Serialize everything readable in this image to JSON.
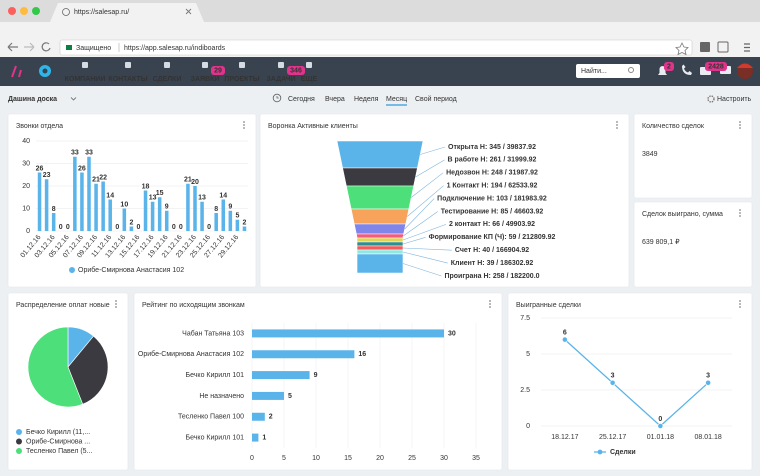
{
  "browser": {
    "tab_title": "https://salesap.ru/",
    "secure_label": "Защищено",
    "url": "https://app.salesap.ru/indiboards"
  },
  "nav": {
    "items": [
      {
        "label": "КОМПАНИИ"
      },
      {
        "label": "КОНТАКТЫ"
      },
      {
        "label": "СДЕЛКИ"
      },
      {
        "label": "ЗАЯВКИ",
        "badge": 29
      },
      {
        "label": "ПРОЕКТЫ"
      },
      {
        "label": "ЗАДАЧИ",
        "badge": 346
      },
      {
        "label": "ЕЩЕ"
      }
    ],
    "search_placeholder": "Найти...",
    "notification_badges": [
      2,
      2428
    ]
  },
  "toolbar": {
    "board_name": "Дашина доска",
    "periods": [
      "Сегодня",
      "Вчера",
      "Неделя",
      "Месяц",
      "Свой период"
    ],
    "settings_label": "Настроить"
  },
  "widgets": {
    "calls": {
      "title": "Звонки отдела",
      "chart": {
        "type": "bar",
        "categories": [
          "01.12.16",
          null,
          "03.12.16",
          null,
          "05.12.16",
          null,
          "07.12.16",
          null,
          "09.12.16",
          null,
          "11.12.16",
          null,
          "13.12.16",
          null,
          "15.12.16",
          null,
          "17.12.16",
          null,
          "19.12.16",
          null,
          "21.12.16",
          null,
          "23.12.16",
          null,
          "25.12.16",
          null,
          "27.12.16",
          null,
          "29.12.16",
          null
        ],
        "series": [
          {
            "name": "Орибе-Смирнова Анастасия 102",
            "color": "#5ab4ea",
            "values": [
              26,
              23,
              8,
              0,
              0,
              33,
              26,
              33,
              21,
              22,
              14,
              0,
              10,
              2,
              0,
              18,
              13,
              15,
              9,
              0,
              0,
              21,
              20,
              13,
              0,
              8,
              14,
              9,
              5,
              2
            ]
          }
        ],
        "ylim": [
          0,
          40
        ],
        "yticks": [
          0,
          10,
          20,
          30,
          40
        ],
        "grid": true
      }
    },
    "funnel": {
      "title": "Воронка Активные клиенты",
      "chart": {
        "type": "funnel",
        "stages": [
          {
            "label": "Открыта Н: 345 / 39837.92",
            "color": "#5ab4ea"
          },
          {
            "label": "В работе Н: 261 / 31999.92",
            "color": "#3a3a40"
          },
          {
            "label": "Недозвон Н: 248 / 31987.92",
            "color": "#4de07a"
          },
          {
            "label": "1 Контакт Н: 194 / 62533.92",
            "color": "#f7a35c"
          },
          {
            "label": "Подключение Н: 103 / 181983.92",
            "color": "#8085e9"
          },
          {
            "label": "Тестирование Н: 85 / 46603.92",
            "color": "#f15c80"
          },
          {
            "label": "2 контакт Н: 66 / 49903.92",
            "color": "#e4d354"
          },
          {
            "label": "Формирование КП (Ч): 59 / 212809.92",
            "color": "#2b908f"
          },
          {
            "label": "Счет Н: 40 / 166904.92",
            "color": "#f45b5b"
          },
          {
            "label": "Клиент Н: 39 / 186302.92",
            "color": "#91e8e1"
          },
          {
            "label": "Проиграна Н: 258 / 182200.0",
            "color": "#5ab4ea"
          }
        ]
      }
    },
    "deal_count": {
      "title": "Количество сделок",
      "value": 3849
    },
    "deals_won_sum": {
      "title": "Сделок выиграно, сумма",
      "value": "639 809,1 ₽"
    },
    "payments": {
      "title": "Распределение оплат новые",
      "chart": {
        "type": "pie",
        "categories": [
          "Бечко Кирилл (11,...",
          "Орибе-Смирнова ...",
          "Тесленко Павел (5..."
        ],
        "values": [
          11,
          33,
          56
        ],
        "colors": [
          "#5ab4ea",
          "#3a3a40",
          "#4de07a"
        ]
      }
    },
    "rating": {
      "title": "Рейтинг по исходящим звонкам",
      "chart": {
        "type": "hbar",
        "categories": [
          "Чабан Татьяна 103",
          "Орибе-Смирнова Анастасия 102",
          "Бечко Кирилл 101",
          "Не назначено",
          "Тесленко Павел 100",
          "Бечко Кирилл 101"
        ],
        "values": [
          30,
          16,
          9,
          5,
          2,
          1
        ],
        "color": "#5ab4ea",
        "xlim": [
          0,
          35
        ],
        "xticks": [
          0,
          5,
          10,
          15,
          20,
          25,
          30,
          35
        ],
        "grid": true
      }
    },
    "won_deals": {
      "title": "Выигранные сделки",
      "chart": {
        "type": "line",
        "categories": [
          "18.12.17",
          "25.12.17",
          "01.01.18",
          "08.01.18"
        ],
        "series": [
          {
            "name": "Сделки",
            "color": "#5ab4ea",
            "values": [
              6,
              3,
              0,
              3
            ]
          }
        ],
        "ylim": [
          0,
          7.5
        ],
        "yticks": [
          0,
          2.5,
          5,
          7.5
        ],
        "grid": true
      }
    }
  }
}
